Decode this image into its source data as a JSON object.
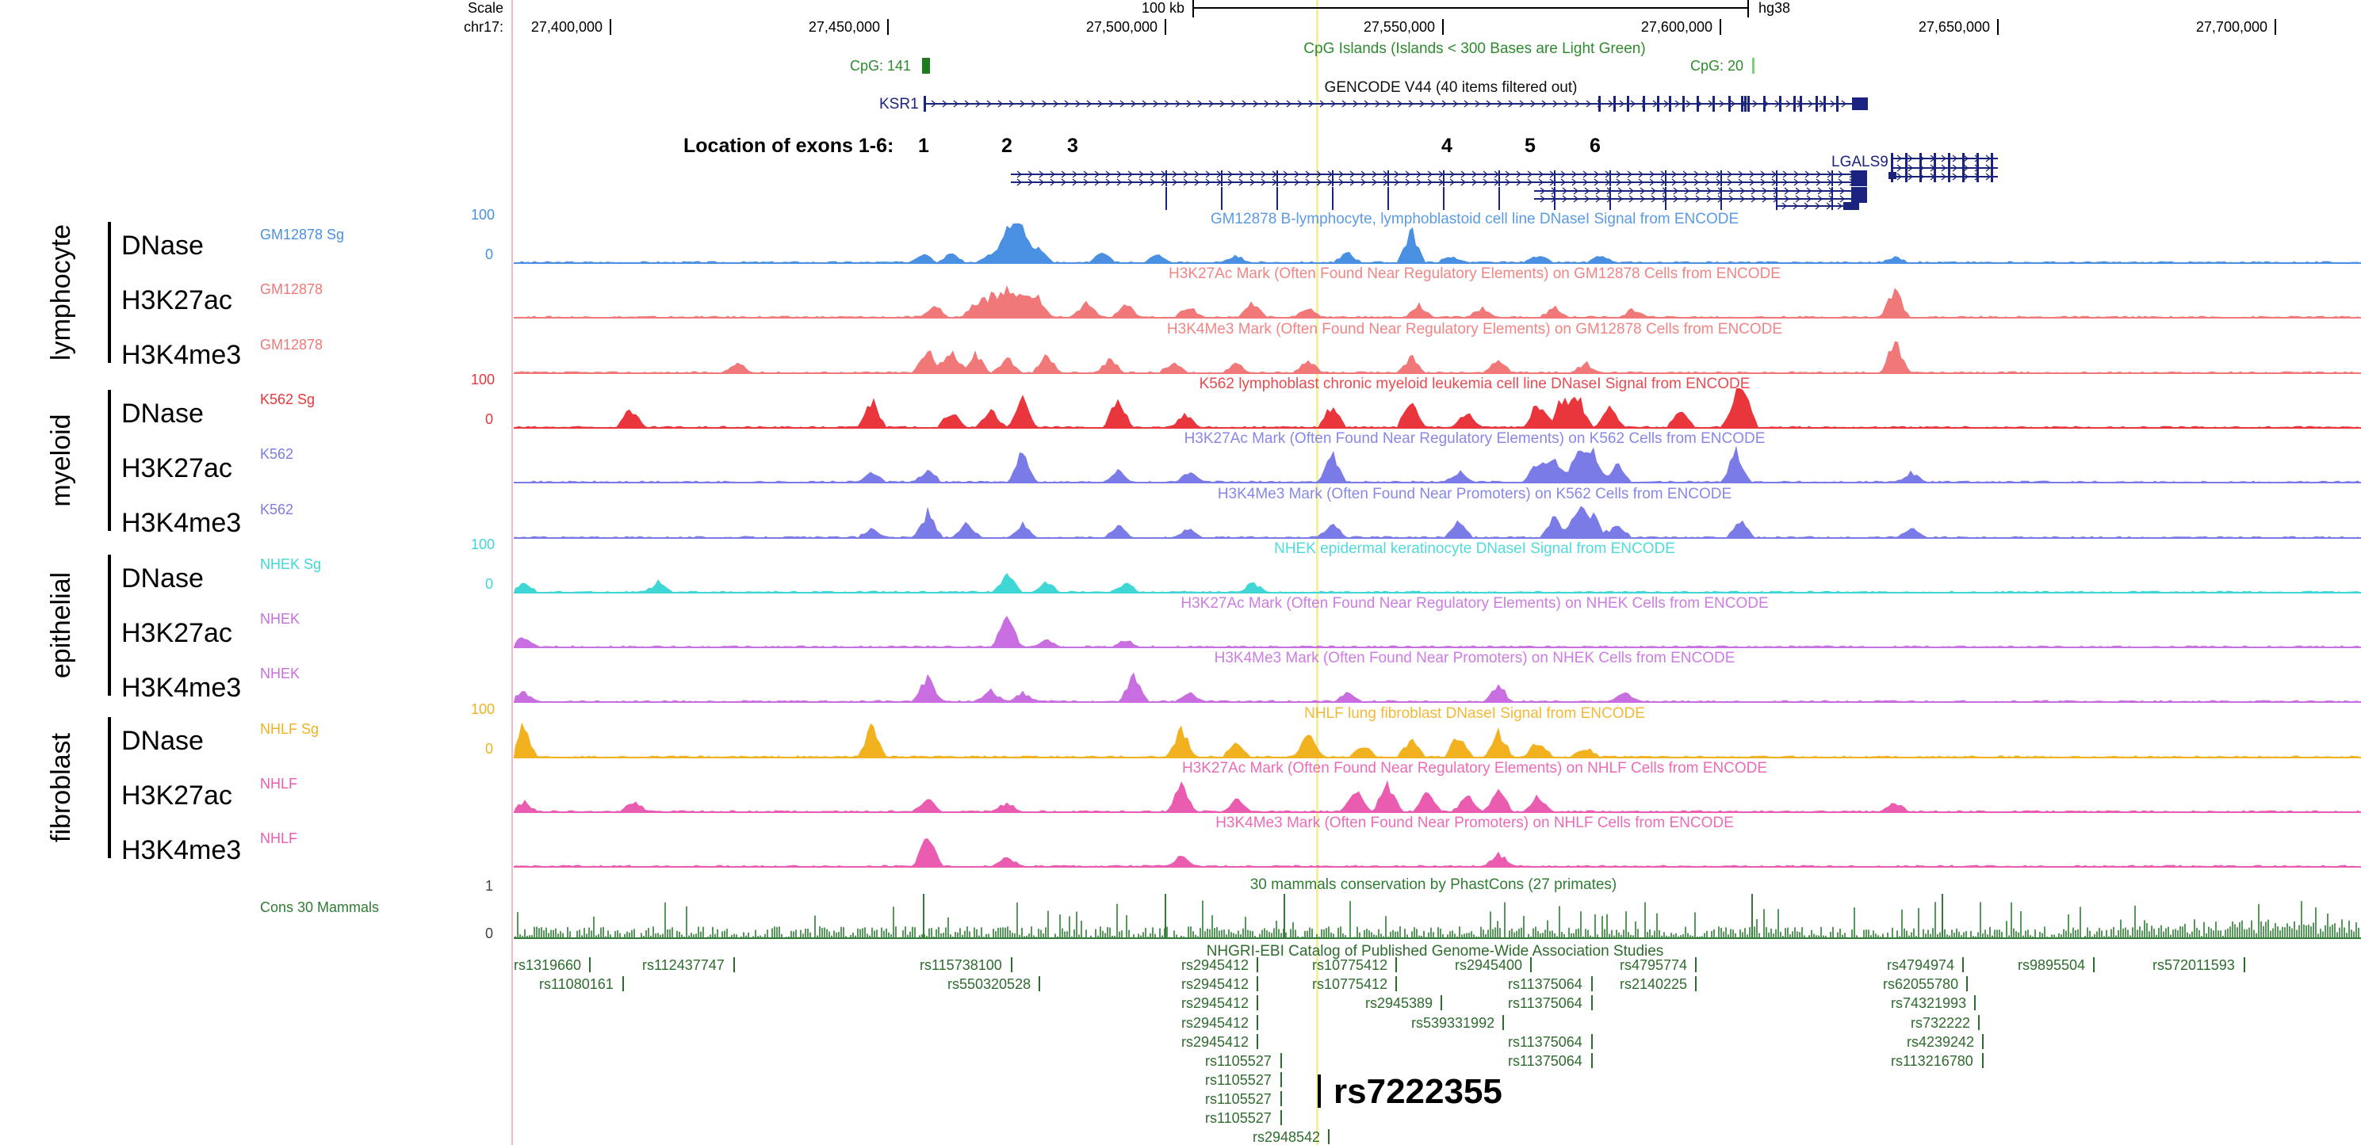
{
  "browser": {
    "scale_label": "Scale",
    "scale_value": "100 kb",
    "assembly": "hg38",
    "chrom": "chr17:",
    "positions": [
      "27,400,000",
      "27,450,000",
      "27,500,000",
      "27,550,000",
      "27,600,000",
      "27,650,000",
      "27,700,000"
    ]
  },
  "cpg": {
    "title": "CpG Islands (Islands < 300 Bases are Light Green)",
    "left": "CpG: 141",
    "right": "CpG: 20"
  },
  "gencode": {
    "title": "GENCODE V44 (40 items filtered out)",
    "gene1": "KSR1",
    "gene2": "LGALS9"
  },
  "exons": {
    "label": "Location of exons 1-6:",
    "numbers": [
      "1",
      "2",
      "3",
      "4",
      "5",
      "6"
    ]
  },
  "groups": [
    {
      "name": "lymphocyte",
      "marks": [
        "DNase",
        "H3K27ac",
        "H3K4me3"
      ]
    },
    {
      "name": "myeloid",
      "marks": [
        "DNase",
        "H3K27ac",
        "H3K4me3"
      ]
    },
    {
      "name": "epithelial",
      "marks": [
        "DNase",
        "H3K27ac",
        "H3K4me3"
      ]
    },
    {
      "name": "fibroblast",
      "marks": [
        "DNase",
        "H3K27ac",
        "H3K4me3"
      ]
    }
  ],
  "tracks": [
    {
      "short": "GM12878 Sg",
      "title": "GM12878 B-lymphocyte, lymphoblastoid cell line DNaseI Signal from ENCODE",
      "color": "#4a90e2",
      "ymax": "100",
      "ymin": "0"
    },
    {
      "short": "GM12878",
      "title": "H3K27Ac Mark (Often Found Near Regulatory Elements) on GM12878 Cells from ENCODE",
      "color": "#f07878"
    },
    {
      "short": "GM12878",
      "title": "H3K4Me3 Mark (Often Found Near Regulatory Elements) on GM12878 Cells from ENCODE",
      "color": "#f07878"
    },
    {
      "short": "K562 Sg",
      "title": "K562 lymphoblast chronic myeloid leukemia  cell line DNaseI Signal from ENCODE",
      "color": "#e8363c",
      "ymax": "100",
      "ymin": "0"
    },
    {
      "short": "K562",
      "title": "H3K27Ac Mark (Often Found Near Regulatory Elements) on K562 Cells from ENCODE",
      "color": "#7b7be8"
    },
    {
      "short": "K562",
      "title": "H3K4Me3 Mark (Often Found Near Promoters) on K562 Cells from ENCODE",
      "color": "#7b7be8"
    },
    {
      "short": "NHEK Sg",
      "title": "NHEK epidermal keratinocyte DNaseI Signal from ENCODE",
      "color": "#3fd6d6",
      "ymax": "100",
      "ymin": "0"
    },
    {
      "short": "NHEK",
      "title": "H3K27Ac Mark (Often Found Near Regulatory Elements) on NHEK Cells from ENCODE",
      "color": "#c86ee0"
    },
    {
      "short": "NHEK",
      "title": "H3K4Me3 Mark (Often Found Near Promoters) on NHEK Cells from ENCODE",
      "color": "#c86ee0"
    },
    {
      "short": "NHLF Sg",
      "title": "NHLF lung fibroblast DNaseI Signal from ENCODE",
      "color": "#f2b220",
      "ymax": "100",
      "ymin": "0"
    },
    {
      "short": "NHLF",
      "title": "H3K27Ac Mark (Often Found Near Regulatory Elements) on NHLF Cells from ENCODE",
      "color": "#ea5cb0"
    },
    {
      "short": "NHLF",
      "title": "H3K4Me3 Mark (Often Found Near Promoters) on NHLF Cells from ENCODE",
      "color": "#ea5cb0"
    }
  ],
  "conservation": {
    "short": "Cons 30 Mammals",
    "title": "30 mammals conservation by PhastCons (27 primates)",
    "ymax": "1",
    "ymin": "0",
    "color": "#2e7d32"
  },
  "gwas": {
    "title": "NHGRI-EBI Catalog of Published Genome-Wide Association Studies",
    "color": "#2e6b2e",
    "snps": [
      "rs1319660",
      "rs11080161",
      "rs112437747",
      "rs115738100",
      "rs550320528",
      "rs2945412",
      "rs2945412",
      "rs2945412",
      "rs2945412",
      "rs2945412",
      "rs1105527",
      "rs1105527",
      "rs1105527",
      "rs1105527",
      "rs2948542",
      "rs10775412",
      "rs10775412",
      "rs2945389",
      "rs539331992",
      "rs2945400",
      "rs11375064",
      "rs11375064",
      "rs11375064",
      "rs11375064",
      "rs4795774",
      "rs2140225",
      "rs4794974",
      "rs62055780",
      "rs74321993",
      "rs732222",
      "rs4239242",
      "rs113216780",
      "rs9895504",
      "rs572011593"
    ],
    "highlight": "rs7222355"
  }
}
